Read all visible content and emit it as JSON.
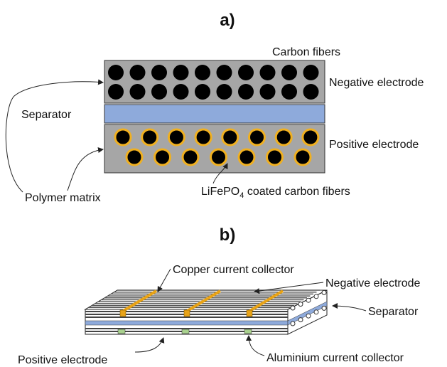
{
  "panel_a": {
    "title": "a)",
    "carbon_fibers": "Carbon fibers",
    "negative_electrode": "Negative electrode",
    "separator": "Separator",
    "positive_electrode": "Positive electrode",
    "polymer_matrix": "Polymer matrix",
    "coated_fibers": {
      "formula": "LiFePO",
      "subscript": "4",
      "rest": " coated carbon fibers"
    }
  },
  "panel_b": {
    "title": "b)",
    "copper_collector": "Copper current collector",
    "negative_electrode": "Negative electrode",
    "separator": "Separator",
    "positive_electrode": "Positive electrode",
    "aluminium_collector": "Aluminium current collector"
  }
}
